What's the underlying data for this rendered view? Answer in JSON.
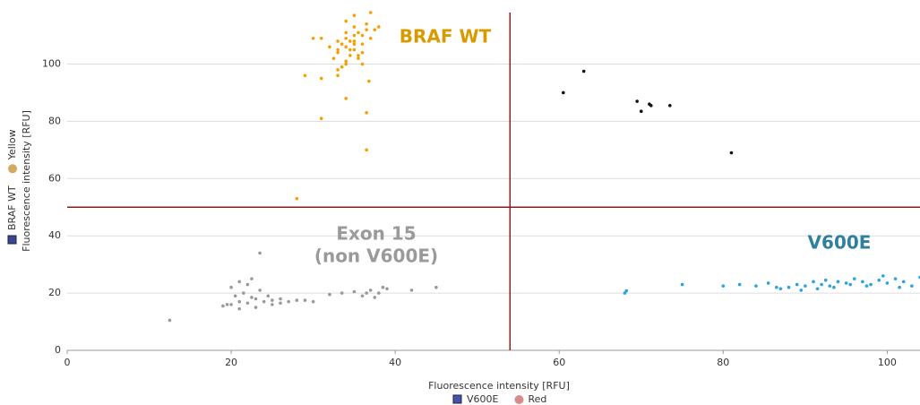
{
  "chart_data": {
    "type": "scatter",
    "xlabel": "Fluorescence intensity [RFU]",
    "ylabel": "Fluorescence intensity [RFU]",
    "xlim": [
      0,
      104
    ],
    "ylim": [
      0,
      118
    ],
    "xticks": [
      0,
      20,
      40,
      60,
      80,
      100
    ],
    "yticks": [
      0,
      20,
      40,
      60,
      80,
      100
    ],
    "grid": true,
    "thresholds": {
      "x": 54,
      "y": 50,
      "color": "#8b1a1a"
    },
    "x_legend": [
      {
        "label": "V600E",
        "color": "#4652b0",
        "shape": "square"
      },
      {
        "label": "Red",
        "color": "#d98a8a",
        "shape": "circle"
      }
    ],
    "y_legend": [
      {
        "label": "BRAF WT",
        "color": "#3b4596",
        "shape": "square"
      },
      {
        "label": "Yellow",
        "color": "#d4aa60",
        "shape": "circle"
      }
    ],
    "annotations": [
      {
        "text": [
          "BRAF WT"
        ],
        "color": "#d99a00"
      },
      {
        "text": [
          "Exon 15",
          "(non V600E)"
        ],
        "color": "#9a9a9a"
      },
      {
        "text": [
          "V600E"
        ],
        "color": "#2f7f9e"
      }
    ],
    "series": [
      {
        "color": "#f5a000",
        "x": [
          34,
          35,
          33,
          36,
          34.5,
          35.5,
          33.5,
          34,
          36.5,
          35,
          32.5,
          34,
          35,
          33,
          36,
          37,
          34.5,
          35.5,
          33,
          34,
          35,
          36,
          32,
          37.5,
          34,
          35,
          33.5,
          36.5,
          31,
          35,
          34,
          36,
          33,
          35.5,
          34.5,
          31,
          33,
          29,
          31,
          36.5,
          36.5,
          28,
          30,
          34,
          38,
          37,
          36.8
        ],
        "values": [
          106,
          108,
          104,
          110,
          103,
          111,
          107,
          100,
          112,
          105,
          102,
          109,
          113,
          98,
          107,
          109,
          105,
          102,
          108,
          115,
          110,
          104,
          106,
          112,
          101,
          107,
          99,
          114,
          109,
          117,
          111,
          100,
          105,
          103,
          108,
          95,
          96,
          96,
          81,
          83,
          70,
          53,
          109,
          88,
          113,
          118,
          94
        ]
      },
      {
        "color": "#111111",
        "x": [
          60.5,
          63,
          69.5,
          70,
          71,
          71.2,
          73.5,
          81
        ],
        "values": [
          90,
          97.5,
          87,
          83.5,
          86,
          85.5,
          85.5,
          69
        ]
      },
      {
        "color": "#999999",
        "x": [
          19,
          20,
          21,
          22,
          23,
          24,
          25,
          26,
          27,
          28,
          20.5,
          21.5,
          22.5,
          23.5,
          24.5,
          19.5,
          20,
          21,
          22,
          23,
          25,
          26,
          29,
          30,
          12.5,
          23.5,
          32,
          33.5,
          35,
          36,
          37,
          38,
          39,
          37.5,
          36.5,
          38.5,
          42,
          45,
          21,
          22.5
        ],
        "values": [
          15.5,
          16,
          17,
          16.5,
          18,
          17,
          17.5,
          16.5,
          17,
          17.5,
          19,
          20,
          18.5,
          21,
          19,
          16,
          22,
          24,
          23,
          15,
          16,
          18,
          17.5,
          17,
          10.5,
          34,
          19.5,
          20,
          20.5,
          19,
          21,
          20,
          21.5,
          18.5,
          20,
          22,
          21,
          22,
          14.5,
          25
        ]
      },
      {
        "color": "#29a3dd",
        "x": [
          68,
          68.2,
          75,
          80,
          82,
          84,
          85.5,
          87,
          88,
          89,
          90,
          91,
          92,
          93,
          94,
          95,
          96,
          97,
          98,
          99,
          100,
          101,
          102,
          103,
          104,
          89.5,
          91.5,
          93.5,
          95.5,
          97.5,
          99.5,
          101.5,
          86.5,
          92.5
        ],
        "values": [
          20,
          20.8,
          23,
          22.5,
          23,
          22.5,
          23.5,
          21.5,
          22,
          23,
          22.5,
          24,
          23,
          22.5,
          24,
          23.5,
          25,
          24,
          23,
          24.5,
          23.5,
          25,
          24,
          22.5,
          25.5,
          21,
          21.5,
          22,
          23,
          22.5,
          26,
          22,
          22,
          24.5
        ]
      }
    ]
  }
}
